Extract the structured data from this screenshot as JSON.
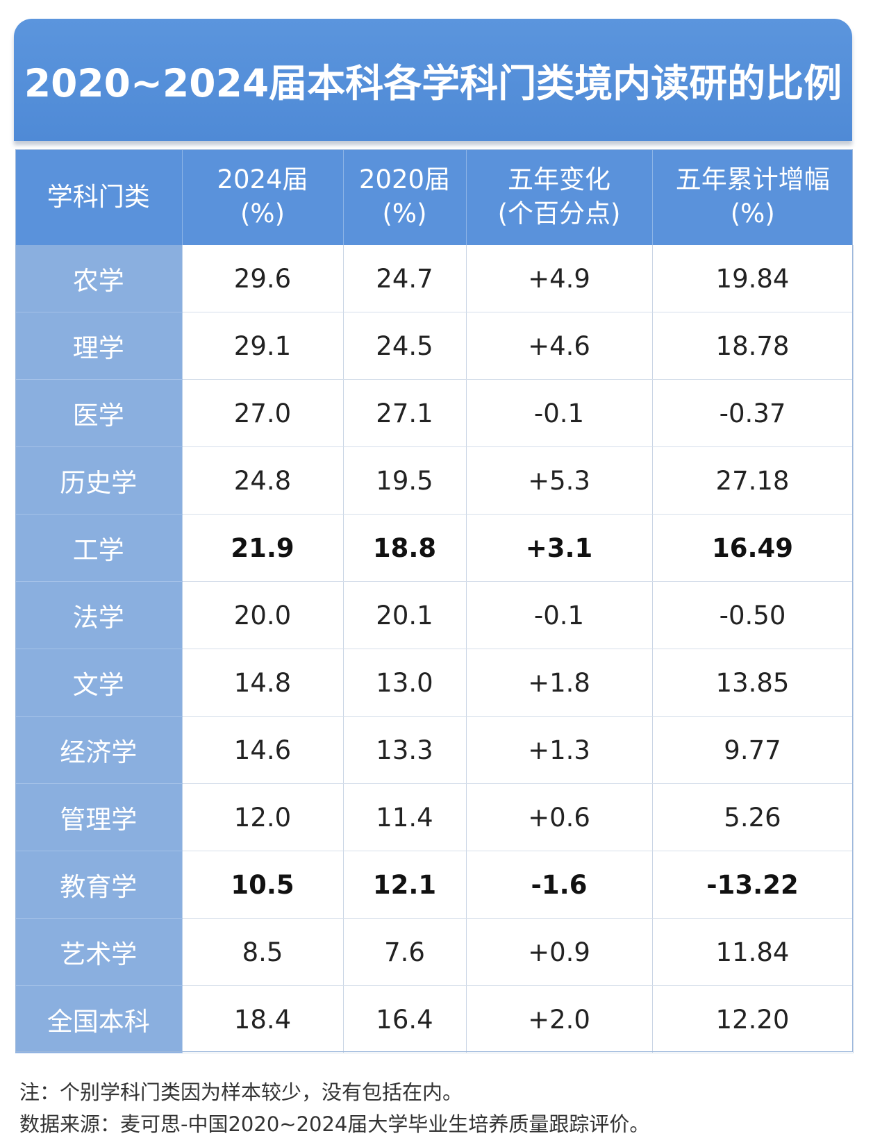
{
  "title": "2020~2024届本科各学科门类境内读研的比例",
  "chart_data": {
    "type": "table",
    "columns": [
      "学科门类",
      "2024届\n(%)",
      "2020届\n(%)",
      "五年变化\n(个百分点)",
      "五年累计增幅\n(%)"
    ],
    "rows": [
      {
        "category": "农学",
        "y2024": "29.6",
        "y2020": "24.7",
        "change": "+4.9",
        "growth": "19.84",
        "bold": false
      },
      {
        "category": "理学",
        "y2024": "29.1",
        "y2020": "24.5",
        "change": "+4.6",
        "growth": "18.78",
        "bold": false
      },
      {
        "category": "医学",
        "y2024": "27.0",
        "y2020": "27.1",
        "change": "-0.1",
        "growth": "-0.37",
        "bold": false
      },
      {
        "category": "历史学",
        "y2024": "24.8",
        "y2020": "19.5",
        "change": "+5.3",
        "growth": "27.18",
        "bold": false
      },
      {
        "category": "工学",
        "y2024": "21.9",
        "y2020": "18.8",
        "change": "+3.1",
        "growth": "16.49",
        "bold": true
      },
      {
        "category": "法学",
        "y2024": "20.0",
        "y2020": "20.1",
        "change": "-0.1",
        "growth": "-0.50",
        "bold": false
      },
      {
        "category": "文学",
        "y2024": "14.8",
        "y2020": "13.0",
        "change": "+1.8",
        "growth": "13.85",
        "bold": false
      },
      {
        "category": "经济学",
        "y2024": "14.6",
        "y2020": "13.3",
        "change": "+1.3",
        "growth": "9.77",
        "bold": false
      },
      {
        "category": "管理学",
        "y2024": "12.0",
        "y2020": "11.4",
        "change": "+0.6",
        "growth": "5.26",
        "bold": false
      },
      {
        "category": "教育学",
        "y2024": "10.5",
        "y2020": "12.1",
        "change": "-1.6",
        "growth": "-13.22",
        "bold": true
      },
      {
        "category": "艺术学",
        "y2024": "8.5",
        "y2020": "7.6",
        "change": "+0.9",
        "growth": "11.84",
        "bold": false
      },
      {
        "category": "全国本科",
        "y2024": "18.4",
        "y2020": "16.4",
        "change": "+2.0",
        "growth": "12.20",
        "bold": false
      }
    ]
  },
  "notes": {
    "note": "注：个别学科门类因为样本较少，没有包括在内。",
    "source": "数据来源：麦可思-中国2020~2024届大学毕业生培养质量跟踪评价。"
  },
  "colors": {
    "title_bg": "#5b95dd",
    "header_bg": "#5a92db",
    "category_bg": "#8aafdf"
  }
}
